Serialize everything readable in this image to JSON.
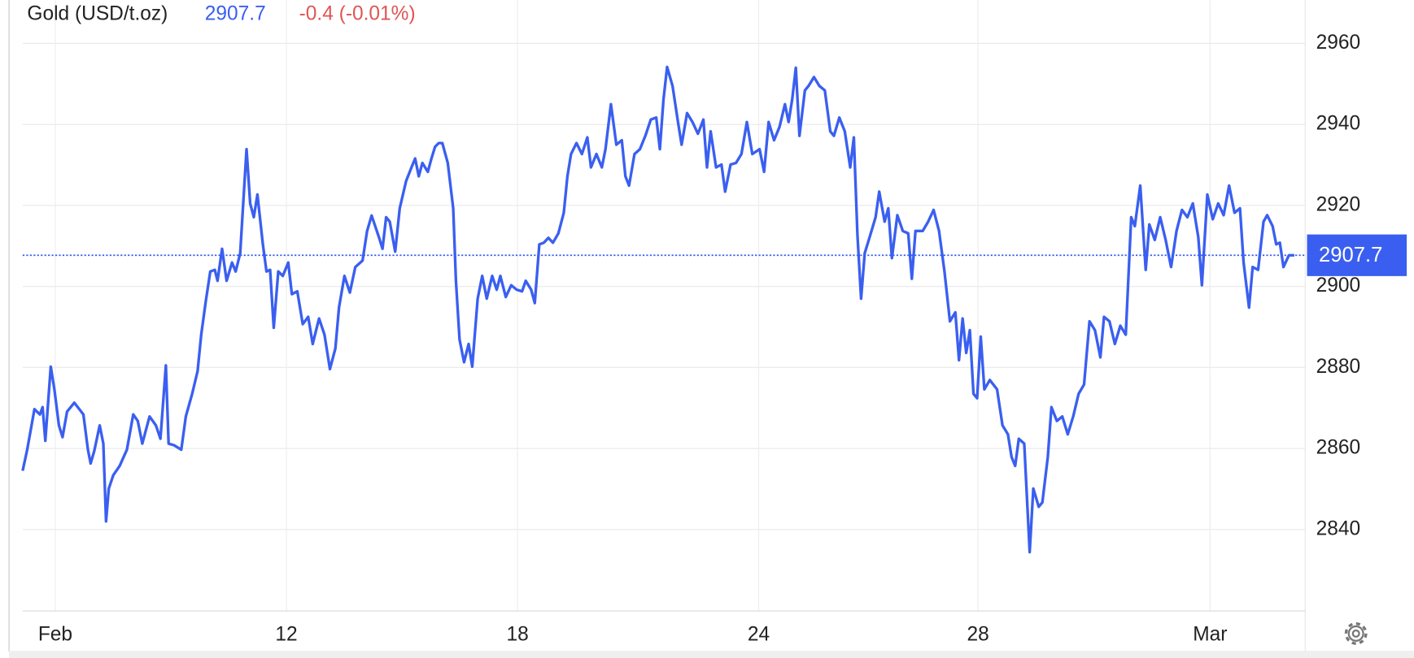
{
  "chart_data": {
    "type": "line",
    "title": "Gold (USD/t.oz)",
    "last_price": 2907.7,
    "change_label": "-0.4 (-0.01%)",
    "color": "#3a5ff0",
    "grid": true,
    "xlim": [
      0,
      141.5
    ],
    "ylim": [
      2820,
      2964
    ],
    "yticks": [
      2840,
      2860,
      2880,
      2900,
      2920,
      2940,
      2960
    ],
    "xticks": [
      {
        "value": 3.6,
        "label": "Feb"
      },
      {
        "value": 29.1,
        "label": "12"
      },
      {
        "value": 54.6,
        "label": "18"
      },
      {
        "value": 81.2,
        "label": "24"
      },
      {
        "value": 105.4,
        "label": "28"
      },
      {
        "value": 131.0,
        "label": "Mar"
      }
    ],
    "x": [
      0,
      0.5,
      1.3,
      1.9,
      2.2,
      2.5,
      3.1,
      3.5,
      4.0,
      4.4,
      4.9,
      5.7,
      6.7,
      7.2,
      7.5,
      7.9,
      8.5,
      8.9,
      9.2,
      9.5,
      10.0,
      10.7,
      11.5,
      12.2,
      12.7,
      13.2,
      14.0,
      14.7,
      15.2,
      15.8,
      16.1,
      16.7,
      17.5,
      18.0,
      18.7,
      19.3,
      19.7,
      20.2,
      20.7,
      21.2,
      21.5,
      22.0,
      22.5,
      23.1,
      23.5,
      24.0,
      24.3,
      24.7,
      25.1,
      25.5,
      25.9,
      26.5,
      26.9,
      27.3,
      27.7,
      28.2,
      28.7,
      29.3,
      29.7,
      30.3,
      30.9,
      31.5,
      32.0,
      32.7,
      33.3,
      33.9,
      34.5,
      34.9,
      35.5,
      36.1,
      36.7,
      37.5,
      38.0,
      38.5,
      39.3,
      39.7,
      40.1,
      40.5,
      41.1,
      41.6,
      42.3,
      42.9,
      43.3,
      43.7,
      44.1,
      44.7,
      45.1,
      45.5,
      45.9,
      46.3,
      46.9,
      47.5,
      47.8,
      48.2,
      48.7,
      49.2,
      49.6,
      50.2,
      50.7,
      51.2,
      51.8,
      52.3,
      52.7,
      53.3,
      53.9,
      54.5,
      55.1,
      55.5,
      56.1,
      56.5,
      57.0,
      57.5,
      58.0,
      58.5,
      59.1,
      59.7,
      60.1,
      60.5,
      61.1,
      61.7,
      62.3,
      62.7,
      63.3,
      63.9,
      64.3,
      64.9,
      65.5,
      66.1,
      66.5,
      66.9,
      67.5,
      68.1,
      68.7,
      69.3,
      69.9,
      70.3,
      70.7,
      71.1,
      71.7,
      72.3,
      72.7,
      73.3,
      73.9,
      74.5,
      75.1,
      75.5,
      75.9,
      76.5,
      77.1,
      77.5,
      78.1,
      78.7,
      79.3,
      79.9,
      80.5,
      81.3,
      81.8,
      82.3,
      82.9,
      83.5,
      84.1,
      84.5,
      84.9,
      85.3,
      85.7,
      86.3,
      86.7,
      87.3,
      87.9,
      88.5,
      89.1,
      89.5,
      90.1,
      90.7,
      91.3,
      91.7,
      92.1,
      92.5,
      92.9,
      93.5,
      94.1,
      94.5,
      95.1,
      95.5,
      95.9,
      96.5,
      97.1,
      97.7,
      98.1,
      98.5,
      99.3,
      99.9,
      100.5,
      101.1,
      101.7,
      102.3,
      102.9,
      103.3,
      103.7,
      104.1,
      104.5,
      104.9,
      105.3,
      105.7,
      106.1,
      106.7,
      107.5,
      108.1,
      108.7,
      109.1,
      109.5,
      109.9,
      110.5,
      111.1,
      111.5,
      112.1,
      112.5,
      113.1,
      113.5,
      114.1,
      114.7,
      115.3,
      115.9,
      116.5,
      117.1,
      117.7,
      118.3,
      118.9,
      119.3,
      119.9,
      120.5,
      121.1,
      121.7,
      122.3,
      122.7,
      123.3,
      123.9,
      124.3,
      124.9,
      125.5,
      126.1,
      126.7,
      127.3,
      127.9,
      128.5,
      129.1,
      129.7,
      130.1,
      130.7,
      131.3,
      131.9,
      132.5,
      133.1,
      133.7,
      134.3,
      134.7,
      135.3,
      135.7,
      136.3,
      136.9,
      137.3,
      137.9,
      138.3,
      138.7,
      139.1,
      139.7,
      140.3
    ],
    "values": [
      2854.5,
      2859.7,
      2869.7,
      2868.4,
      2870.2,
      2861.9,
      2880.2,
      2874.6,
      2865.7,
      2862.8,
      2869.1,
      2871.3,
      2868.4,
      2859.7,
      2856.3,
      2859.4,
      2865.7,
      2861.2,
      2842.0,
      2850.1,
      2853.4,
      2855.7,
      2859.7,
      2868.4,
      2866.8,
      2861.2,
      2867.9,
      2865.7,
      2862.4,
      2880.5,
      2861.2,
      2860.8,
      2859.7,
      2867.9,
      2873.5,
      2879.1,
      2888.1,
      2896.3,
      2903.7,
      2904.1,
      2901.4,
      2909.3,
      2901.4,
      2905.9,
      2903.7,
      2908.2,
      2919.3,
      2933.9,
      2920.5,
      2917.1,
      2922.7,
      2910.4,
      2903.7,
      2904.1,
      2889.8,
      2903.7,
      2902.6,
      2905.9,
      2898.1,
      2898.8,
      2890.7,
      2892.5,
      2885.8,
      2892.1,
      2888.1,
      2879.6,
      2884.7,
      2894.8,
      2902.6,
      2898.5,
      2904.8,
      2906.4,
      2913.7,
      2917.5,
      2912.2,
      2909.3,
      2917.1,
      2916.0,
      2908.6,
      2919.3,
      2926.0,
      2929.4,
      2931.6,
      2927.2,
      2930.5,
      2928.3,
      2931.6,
      2934.5,
      2935.4,
      2935.4,
      2930.5,
      2919.3,
      2901.4,
      2886.9,
      2881.3,
      2885.8,
      2880.2,
      2897.0,
      2902.6,
      2897.0,
      2902.6,
      2899.2,
      2902.6,
      2897.4,
      2900.3,
      2899.2,
      2898.8,
      2901.4,
      2899.2,
      2895.9,
      2910.4,
      2910.8,
      2912.0,
      2910.8,
      2913.1,
      2918.2,
      2927.2,
      2932.7,
      2935.4,
      2932.7,
      2936.8,
      2929.4,
      2932.7,
      2929.4,
      2933.9,
      2945.0,
      2935.0,
      2936.1,
      2927.2,
      2924.9,
      2932.7,
      2933.9,
      2937.2,
      2941.2,
      2941.7,
      2933.9,
      2946.2,
      2954.2,
      2949.5,
      2940.6,
      2935.0,
      2942.8,
      2940.6,
      2937.7,
      2941.2,
      2929.4,
      2938.3,
      2929.4,
      2930.1,
      2923.4,
      2930.1,
      2930.5,
      2932.7,
      2940.6,
      2932.7,
      2933.9,
      2928.3,
      2940.6,
      2936.1,
      2939.4,
      2945.0,
      2940.6,
      2946.2,
      2954.0,
      2937.2,
      2948.4,
      2949.5,
      2951.7,
      2949.5,
      2948.4,
      2938.3,
      2937.2,
      2941.7,
      2938.3,
      2929.4,
      2936.8,
      2912.6,
      2897.0,
      2908.2,
      2912.6,
      2917.1,
      2923.4,
      2916.0,
      2919.3,
      2907.0,
      2917.6,
      2913.7,
      2913.1,
      2901.9,
      2913.7,
      2913.7,
      2916.0,
      2918.9,
      2913.7,
      2903.7,
      2891.4,
      2893.6,
      2881.8,
      2892.1,
      2883.6,
      2889.2,
      2873.5,
      2872.4,
      2887.6,
      2874.6,
      2876.9,
      2874.6,
      2865.7,
      2863.5,
      2857.9,
      2855.7,
      2862.4,
      2861.2,
      2834.4,
      2850.1,
      2845.6,
      2846.7,
      2857.9,
      2870.2,
      2866.8,
      2867.9,
      2863.5,
      2867.9,
      2873.5,
      2875.8,
      2891.4,
      2889.2,
      2882.5,
      2892.5,
      2891.4,
      2885.8,
      2890.3,
      2888.1,
      2917.1,
      2914.9,
      2924.9,
      2904.1,
      2915.3,
      2911.5,
      2917.1,
      2911.5,
      2904.8,
      2913.7,
      2918.9,
      2917.1,
      2920.5,
      2912.2,
      2900.3,
      2922.7,
      2916.6,
      2920.5,
      2917.6,
      2924.9,
      2918.2,
      2919.3,
      2905.9,
      2894.8,
      2904.8,
      2904.1,
      2916.0,
      2917.6,
      2914.9,
      2910.4,
      2910.8,
      2904.8,
      2907.7,
      2907.7
    ]
  }
}
